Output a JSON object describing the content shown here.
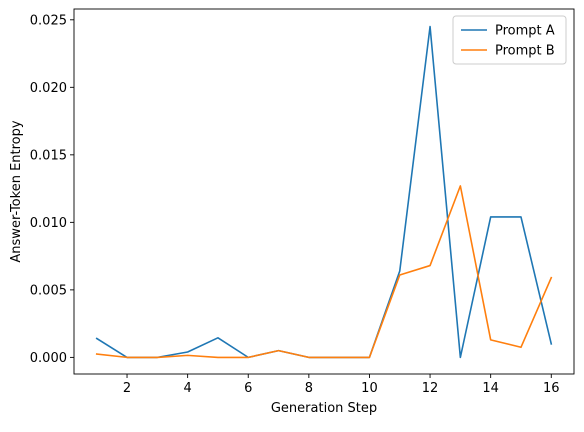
{
  "chart_data": {
    "type": "line",
    "title": "",
    "xlabel": "Generation Step",
    "ylabel": "Answer-Token Entropy",
    "xlim": [
      0.25,
      16.75
    ],
    "ylim": [
      -0.00123,
      0.0258
    ],
    "xticks": [
      2,
      4,
      6,
      8,
      10,
      12,
      14,
      16
    ],
    "yticks": [
      0.0,
      0.005,
      0.01,
      0.015,
      0.02,
      0.025
    ],
    "ytick_labels": [
      "0.000",
      "0.005",
      "0.010",
      "0.015",
      "0.020",
      "0.025"
    ],
    "grid": false,
    "legend_position": "top-right",
    "x": [
      1,
      2,
      3,
      4,
      5,
      6,
      7,
      8,
      9,
      10,
      11,
      12,
      13,
      14,
      15,
      16
    ],
    "series": [
      {
        "name": "Prompt A",
        "color": "#1f77b4",
        "values": [
          0.0014,
          0.0,
          0.0,
          0.0004,
          0.00145,
          0.0,
          0.0005,
          0.0,
          0.0,
          0.0,
          0.0064,
          0.0245,
          0.0,
          0.0104,
          0.0104,
          0.001
        ]
      },
      {
        "name": "Prompt B",
        "color": "#ff7f0e",
        "values": [
          0.00025,
          0.0,
          0.0,
          0.00015,
          0.0,
          0.0,
          0.0005,
          0.0,
          0.0,
          0.0,
          0.0061,
          0.0068,
          0.0127,
          0.0013,
          0.00075,
          0.0059
        ]
      }
    ]
  }
}
